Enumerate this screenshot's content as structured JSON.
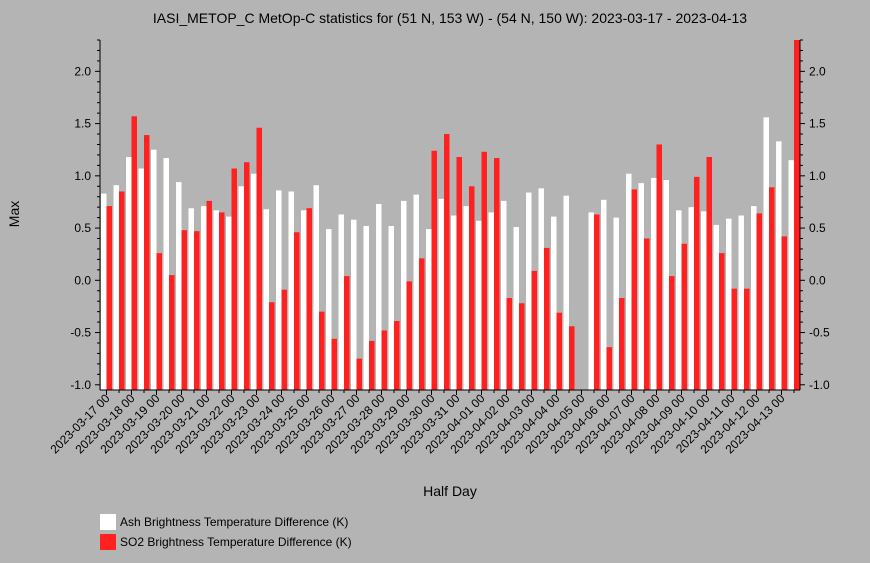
{
  "chart_data": {
    "type": "bar",
    "title": "IASI_METOP_C MetOp-C statistics for (51 N, 153 W) - (54 N, 150 W): 2023-03-17 - 2023-04-13",
    "xlabel": "Half Day",
    "ylabel": "Max",
    "ylim": [
      -1.05,
      2.3
    ],
    "yticks": [
      "-1.0",
      "-0.5",
      "0.0",
      "0.5",
      "1.0",
      "1.5",
      "2.0"
    ],
    "grid": false,
    "legend_position": "bottom-left",
    "tick_labels": [
      "2023-03-17 00",
      "2023-03-18 00",
      "2023-03-19 00",
      "2023-03-20 00",
      "2023-03-21 00",
      "2023-03-22 00",
      "2023-03-23 00",
      "2023-03-24 00",
      "2023-03-25 00",
      "2023-03-26 00",
      "2023-03-27 00",
      "2023-03-28 00",
      "2023-03-29 00",
      "2023-03-30 00",
      "2023-03-31 00",
      "2023-04-01 00",
      "2023-04-02 00",
      "2023-04-03 00",
      "2023-04-04 00",
      "2023-04-05 00",
      "2023-04-06 00",
      "2023-04-07 00",
      "2023-04-08 00",
      "2023-04-09 00",
      "2023-04-10 00",
      "2023-04-11 00",
      "2023-04-12 00",
      "2023-04-13 00"
    ],
    "series": [
      {
        "name": "Ash Brightness Temperature Difference (K)",
        "color": "#ffffff",
        "values": [
          0.83,
          0.91,
          1.18,
          1.07,
          1.25,
          1.17,
          0.94,
          0.69,
          0.71,
          0.67,
          0.61,
          0.9,
          1.02,
          0.68,
          0.86,
          0.85,
          0.67,
          0.91,
          0.49,
          0.63,
          0.58,
          0.52,
          0.73,
          0.52,
          0.76,
          0.82,
          0.49,
          0.78,
          0.62,
          0.71,
          0.57,
          0.65,
          0.76,
          0.51,
          0.84,
          0.88,
          0.61,
          0.81,
          null,
          0.65,
          0.77,
          0.6,
          1.02,
          0.93,
          0.98,
          0.96,
          0.67,
          0.7,
          0.66,
          0.53,
          0.59,
          0.62,
          0.71,
          1.56,
          1.33,
          1.15
        ]
      },
      {
        "name": "SO2 Brightness Temperature Difference (K)",
        "color": "#ff2020",
        "values": [
          0.71,
          0.85,
          1.57,
          1.39,
          0.26,
          0.05,
          0.48,
          0.47,
          0.76,
          0.65,
          1.07,
          1.13,
          1.46,
          -0.21,
          -0.09,
          0.46,
          0.69,
          -0.3,
          -0.56,
          0.04,
          -0.75,
          -0.58,
          -0.48,
          -0.39,
          -0.01,
          0.21,
          1.24,
          1.4,
          1.18,
          0.9,
          1.23,
          1.17,
          -0.17,
          -0.22,
          0.09,
          0.31,
          -0.31,
          -0.44,
          null,
          0.63,
          -0.64,
          -0.17,
          0.87,
          0.4,
          1.3,
          0.04,
          0.35,
          0.99,
          1.18,
          0.26,
          -0.08,
          -0.08,
          0.64,
          0.89,
          0.42,
          2.3
        ]
      }
    ]
  }
}
